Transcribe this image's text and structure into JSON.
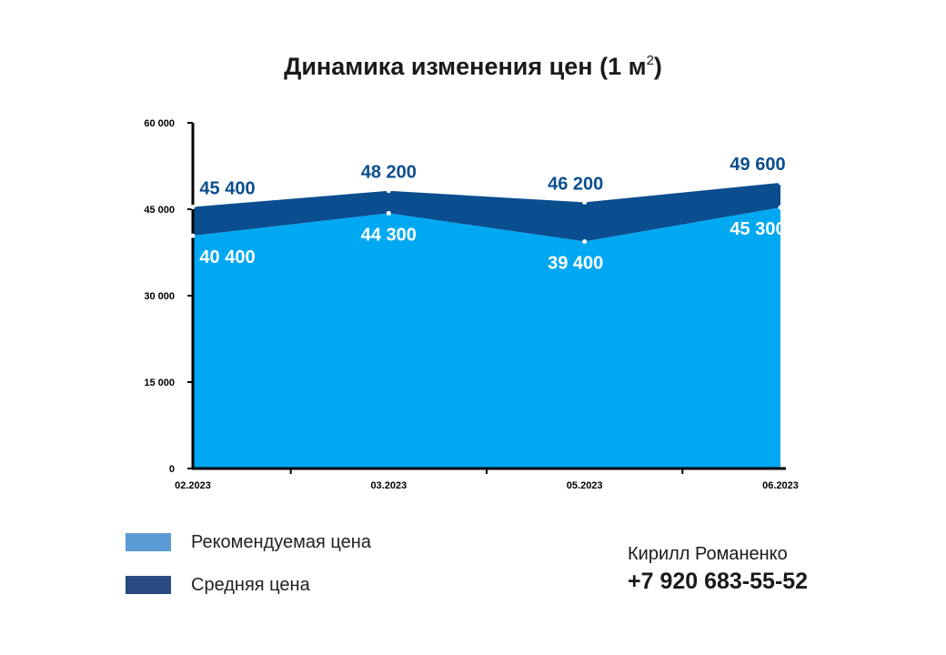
{
  "title": {
    "text": "Динамика изменения цен (1 м",
    "sup": "2",
    "close": ")"
  },
  "chart_data": {
    "type": "area",
    "title": "Динамика изменения цен (1 м²)",
    "categories": [
      "02.2023",
      "03.2023",
      "05.2023",
      "06.2023"
    ],
    "y_ticks": [
      "0",
      "15 000",
      "30 000",
      "45 000",
      "60 000"
    ],
    "ylim": [
      0,
      60000
    ],
    "series": [
      {
        "name": "Средняя цена",
        "values": [
          45400,
          48200,
          46200,
          49600
        ],
        "labels": [
          "45 400",
          "48 200",
          "46 200",
          "49 600"
        ],
        "color": "#0a4e8f",
        "label_color": "#0a4e8f"
      },
      {
        "name": "Рекомендуемая цена",
        "values": [
          40400,
          44300,
          39400,
          45300
        ],
        "labels": [
          "40 400",
          "44 300",
          "39 400",
          "45 300"
        ],
        "color": "#00a8f2",
        "label_color": "#ffffff"
      }
    ],
    "legend_position": "bottom-left",
    "grid": false
  },
  "legend": [
    {
      "label": "Рекомендуемая цена",
      "color": "#5b9bd5"
    },
    {
      "label": "Средняя цена",
      "color": "#2a4a80"
    }
  ],
  "contact": {
    "name": "Кирилл Романенко",
    "phone": "+7 920 683-55-52"
  }
}
